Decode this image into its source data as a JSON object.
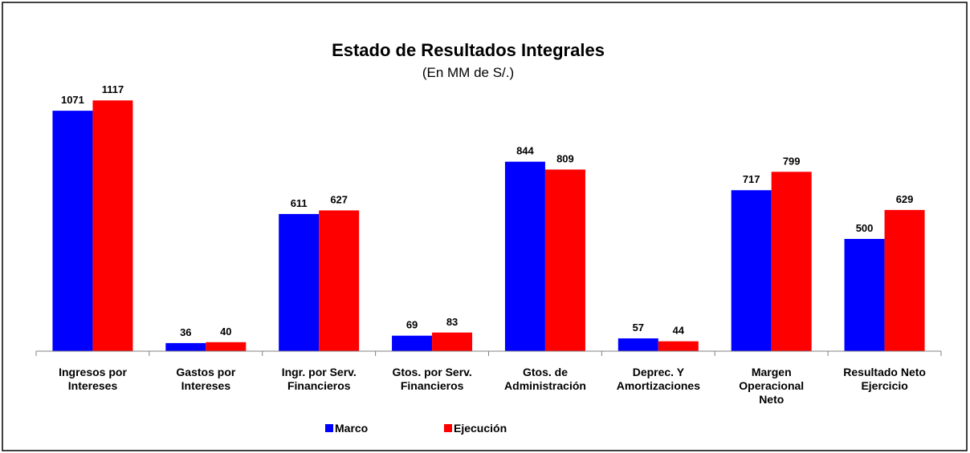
{
  "chart_data": {
    "type": "bar",
    "title": "Estado de Resultados Integrales",
    "subtitle": "(En MM de S/.)",
    "categories": [
      "Ingresos por\nIntereses",
      "Gastos por\nIntereses",
      "Ingr. por Serv.\nFinancieros",
      "Gtos. por Serv.\nFinancieros",
      "Gtos. de\nAdministración",
      "Deprec. Y\nAmortizaciones",
      "Margen\nOperacional\nNeto",
      "Resultado Neto\nEjercicio"
    ],
    "series": [
      {
        "name": "Marco",
        "color": "#0000ff",
        "values": [
          1071,
          36,
          611,
          69,
          844,
          57,
          717,
          500
        ]
      },
      {
        "name": "Ejecución",
        "color": "#ff0000",
        "values": [
          1117,
          40,
          627,
          83,
          809,
          44,
          799,
          629
        ]
      }
    ],
    "ylim": [
      0,
      1200
    ],
    "legend": "bottom"
  }
}
